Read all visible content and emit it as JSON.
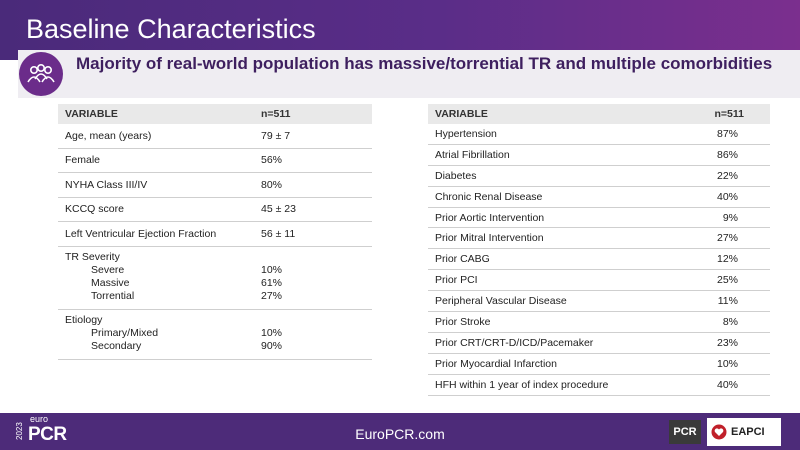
{
  "header": {
    "title": "Baseline Characteristics"
  },
  "subtitle": {
    "text": "Majority of real-world population has massive/torrential TR and multiple comorbidities",
    "icon": "people-group-icon"
  },
  "left_table": {
    "columns": [
      "VARIABLE",
      "n=511"
    ],
    "rows": [
      {
        "label": "Age, mean (years)",
        "value": "79 ± 7"
      },
      {
        "label": "Female",
        "value": "56%"
      },
      {
        "label": "NYHA Class III/IV",
        "value": "80%"
      },
      {
        "label": "KCCQ score",
        "value": "45 ± 23"
      },
      {
        "label": "Left Ventricular Ejection Fraction",
        "value": "56 ± 11"
      }
    ],
    "tr_severity": {
      "label": "TR Severity",
      "items": [
        {
          "label": "Severe",
          "value": "10%"
        },
        {
          "label": "Massive",
          "value": "61%"
        },
        {
          "label": "Torrential",
          "value": "27%"
        }
      ]
    },
    "etiology": {
      "label": "Etiology",
      "items": [
        {
          "label": "Primary/Mixed",
          "value": "10%"
        },
        {
          "label": "Secondary",
          "value": "90%"
        }
      ]
    }
  },
  "right_table": {
    "columns": [
      "VARIABLE",
      "n=511"
    ],
    "rows": [
      {
        "label": "Hypertension",
        "value": "87%"
      },
      {
        "label": "Atrial Fibrillation",
        "value": "86%"
      },
      {
        "label": "Diabetes",
        "value": "22%"
      },
      {
        "label": "Chronic Renal Disease",
        "value": "40%"
      },
      {
        "label": "Prior Aortic Intervention",
        "value": "9%"
      },
      {
        "label": "Prior Mitral Intervention",
        "value": "27%"
      },
      {
        "label": "Prior CABG",
        "value": "12%"
      },
      {
        "label": "Prior PCI",
        "value": "25%"
      },
      {
        "label": "Peripheral Vascular Disease",
        "value": "11%"
      },
      {
        "label": "Prior Stroke",
        "value": "8%"
      },
      {
        "label": "Prior CRT/CRT-D/ICD/Pacemaker",
        "value": "23%"
      },
      {
        "label": "Prior Myocardial Infarction",
        "value": "10%"
      },
      {
        "label": "HFH within 1 year of index procedure",
        "value": "40%"
      }
    ]
  },
  "footer": {
    "year": "2023",
    "brand_small": "euro",
    "brand_large": "PCR",
    "website": "EuroPCR.com",
    "pcr_logo": "PCR",
    "eapci_logo": "EAPCI"
  },
  "colors": {
    "header": "#4d2b79",
    "accent": "#6b2c8a",
    "subtitle_text": "#3e1f5f"
  }
}
